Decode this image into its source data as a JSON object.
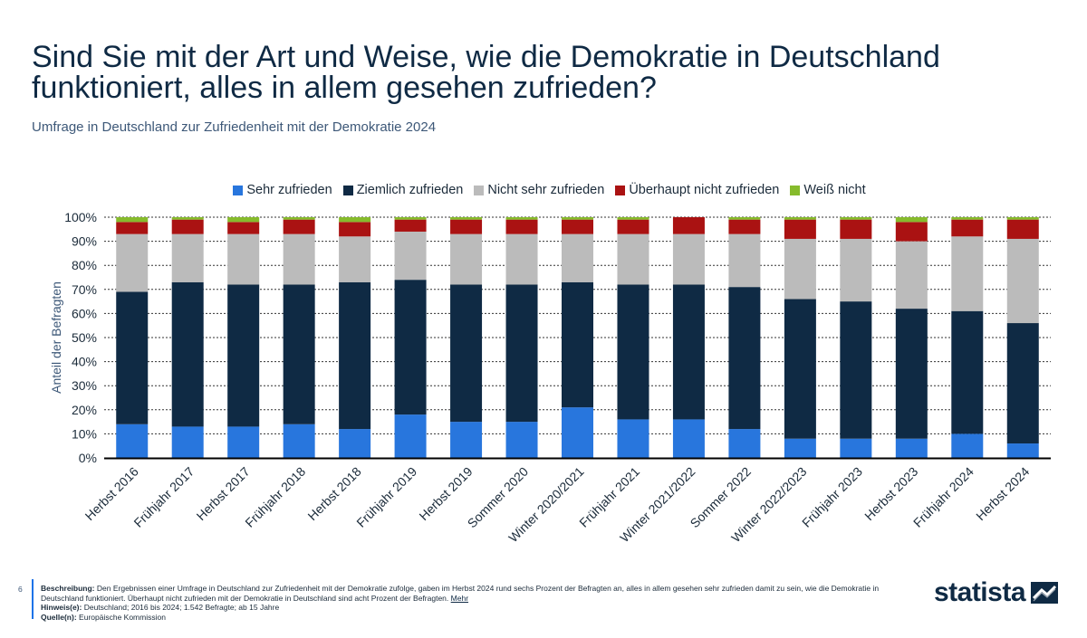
{
  "page": {
    "title": "Sind Sie mit der Art und Weise, wie die Demokratie in Deutschland funktioniert, alles in allem gesehen zufrieden?",
    "subtitle": "Umfrage in Deutschland zur Zufriedenheit mit der Demokratie 2024"
  },
  "chart_data": {
    "type": "bar",
    "stacked": true,
    "ylabel": "Anteil der Befragten",
    "ylim": [
      0,
      100
    ],
    "yticks": [
      "0%",
      "10%",
      "20%",
      "30%",
      "40%",
      "50%",
      "60%",
      "70%",
      "80%",
      "90%",
      "100%"
    ],
    "grid": true,
    "legend_position": "top-center",
    "categories": [
      "Herbst 2016",
      "Frühjahr 2017",
      "Herbst 2017",
      "Frühjahr 2018",
      "Herbst 2018",
      "Frühjahr 2019",
      "Herbst 2019",
      "Sommer 2020",
      "Winter 2020/2021",
      "Frühjahr 2021",
      "Winter 2021/2022",
      "Sommer 2022",
      "Winter 2022/2023",
      "Frühjahr 2023",
      "Herbst 2023",
      "Frühjahr 2024",
      "Herbst 2024"
    ],
    "series": [
      {
        "name": "Sehr zufrieden",
        "color": "#2876dd",
        "values": [
          14,
          13,
          13,
          14,
          12,
          18,
          15,
          15,
          21,
          16,
          16,
          12,
          8,
          8,
          8,
          10,
          6
        ]
      },
      {
        "name": "Ziemlich zufrieden",
        "color": "#0f2a44",
        "values": [
          55,
          60,
          59,
          58,
          61,
          56,
          57,
          57,
          52,
          56,
          56,
          59,
          58,
          57,
          54,
          51,
          50
        ]
      },
      {
        "name": "Nicht sehr zufrieden",
        "color": "#bbbbbb",
        "values": [
          24,
          20,
          21,
          21,
          19,
          20,
          21,
          21,
          20,
          21,
          21,
          22,
          25,
          26,
          28,
          31,
          35
        ]
      },
      {
        "name": "Überhaupt nicht zufrieden",
        "color": "#aa1212",
        "values": [
          5,
          6,
          5,
          6,
          6,
          5,
          6,
          6,
          6,
          6,
          7,
          6,
          8,
          8,
          8,
          7,
          8
        ]
      },
      {
        "name": "Weiß nicht",
        "color": "#86bb2c",
        "values": [
          2,
          1,
          2,
          1,
          2,
          1,
          1,
          1,
          1,
          1,
          0,
          1,
          1,
          1,
          2,
          1,
          1
        ]
      }
    ]
  },
  "footer": {
    "page_number": "6",
    "description_label": "Beschreibung:",
    "description": "Den Ergebnissen einer Umfrage in Deutschland zur Zufriedenheit mit der Demokratie zufolge, gaben im Herbst 2024 rund sechs Prozent der Befragten an, alles in allem gesehen sehr zufrieden damit zu sein, wie die Demokratie in Deutschland funktioniert. Überhaupt nicht zufrieden mit der Demokratie in Deutschland sind acht Prozent der Befragten.",
    "more_link": "Mehr",
    "note_label": "Hinweis(e):",
    "note": "Deutschland; 2016 bis 2024; 1.542 Befragte; ab 15 Jahre",
    "source_label": "Quelle(n):",
    "source": "Europäische Kommission"
  },
  "brand": {
    "name": "statista",
    "icon": "statista-logo-icon"
  }
}
